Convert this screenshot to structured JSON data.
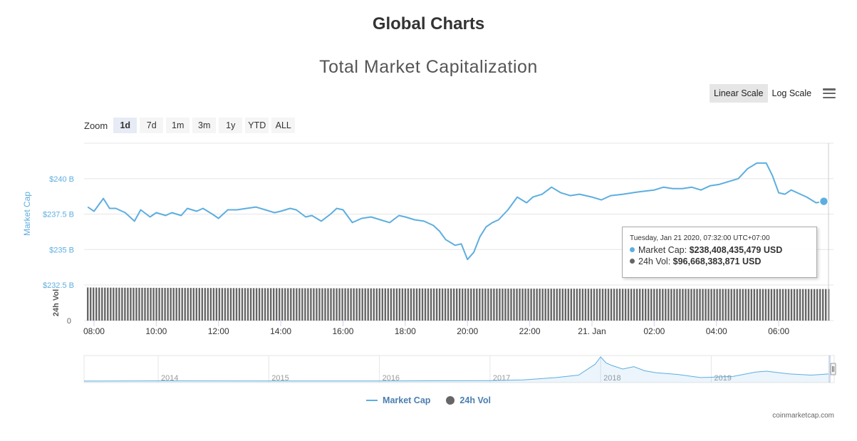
{
  "page": {
    "title": "Global Charts"
  },
  "chart_data": {
    "type": "line",
    "title": "Total Market Capitalization",
    "scale_buttons": [
      "Linear Scale",
      "Log Scale"
    ],
    "active_scale": "Linear Scale",
    "zoom": {
      "label": "Zoom",
      "buttons": [
        "1d",
        "7d",
        "1m",
        "3m",
        "1y",
        "YTD",
        "ALL"
      ],
      "active": "1d"
    },
    "y_axis": {
      "label": "Market Cap",
      "ticks": [
        "$240 B",
        "$237.5 B",
        "$235 B",
        "$232.5 B"
      ],
      "tick_values": [
        240,
        237.5,
        235,
        232.5
      ],
      "range": [
        232.5,
        242.5
      ]
    },
    "vol_axis": {
      "label": "24h Vol",
      "ticks": [
        "0"
      ]
    },
    "x_axis": {
      "ticks": [
        "08:00",
        "10:00",
        "12:00",
        "14:00",
        "16:00",
        "18:00",
        "20:00",
        "22:00",
        "21. Jan",
        "02:00",
        "04:00",
        "06:00"
      ],
      "tick_hours": [
        8,
        10,
        12,
        14,
        16,
        18,
        20,
        22,
        24,
        26,
        28,
        30
      ],
      "range": [
        7.68,
        31.6
      ]
    },
    "series": [
      {
        "name": "Market Cap",
        "color": "#5daee0",
        "x": [
          7.8,
          8.0,
          8.3,
          8.5,
          8.7,
          9.0,
          9.3,
          9.5,
          9.8,
          10.0,
          10.3,
          10.5,
          10.8,
          11.0,
          11.3,
          11.5,
          11.8,
          12.0,
          12.3,
          12.6,
          12.9,
          13.2,
          13.5,
          13.8,
          14.0,
          14.3,
          14.5,
          14.8,
          15.0,
          15.3,
          15.6,
          15.8,
          16.0,
          16.3,
          16.6,
          16.9,
          17.2,
          17.5,
          17.8,
          18.0,
          18.3,
          18.6,
          18.9,
          19.1,
          19.3,
          19.6,
          19.8,
          20.0,
          20.2,
          20.4,
          20.6,
          20.8,
          21.0,
          21.3,
          21.6,
          21.9,
          22.1,
          22.4,
          22.7,
          23.0,
          23.3,
          23.6,
          24.0,
          24.3,
          24.6,
          25.0,
          25.3,
          25.6,
          26.0,
          26.3,
          26.6,
          26.9,
          27.2,
          27.5,
          27.8,
          28.1,
          28.4,
          28.7,
          29.0,
          29.3,
          29.6,
          29.8,
          30.0,
          30.2,
          30.4,
          30.6,
          30.9,
          31.2,
          31.45
        ],
        "values": [
          238.0,
          237.7,
          238.6,
          237.9,
          237.9,
          237.6,
          237.0,
          237.8,
          237.3,
          237.6,
          237.4,
          237.6,
          237.4,
          237.9,
          237.7,
          237.9,
          237.5,
          237.2,
          237.8,
          237.8,
          237.9,
          238.0,
          237.8,
          237.6,
          237.7,
          237.9,
          237.8,
          237.3,
          237.4,
          237.0,
          237.5,
          237.9,
          237.8,
          236.9,
          237.2,
          237.3,
          237.1,
          236.9,
          237.4,
          237.3,
          237.1,
          237.0,
          236.7,
          236.3,
          235.7,
          235.3,
          235.4,
          234.3,
          234.8,
          235.9,
          236.6,
          236.9,
          237.1,
          237.8,
          238.7,
          238.3,
          238.7,
          238.9,
          239.4,
          239.0,
          238.8,
          238.9,
          238.7,
          238.5,
          238.8,
          238.9,
          239.0,
          239.1,
          239.2,
          239.4,
          239.3,
          239.3,
          239.4,
          239.2,
          239.5,
          239.6,
          239.8,
          240.0,
          240.7,
          241.1,
          241.1,
          240.2,
          239.0,
          238.9,
          239.2,
          239.0,
          238.7,
          238.3,
          238.4
        ]
      },
      {
        "name": "24h Vol",
        "color": "#666666",
        "note": "bars decrease slightly over the day",
        "start_billion": 101.5,
        "end_billion": 96.67,
        "range": [
          0,
          120
        ]
      }
    ],
    "tooltip": {
      "date": "Tuesday, Jan 21 2020, 07:32:00 UTC+07:00",
      "market_cap_label": "Market Cap: ",
      "market_cap_value": "$238,408,435,479 USD",
      "vol_label": "24h Vol: ",
      "vol_value": "$96,668,383,871 USD"
    },
    "navigator": {
      "ticks": [
        "2014",
        "2015",
        "2016",
        "2017",
        "2018",
        "2019"
      ],
      "tick_years": [
        2014,
        2015,
        2016,
        2017,
        2018,
        2019
      ],
      "range": [
        2013.33,
        2020.06
      ],
      "x": [
        2013.33,
        2014.0,
        2015.0,
        2016.0,
        2017.0,
        2017.3,
        2017.6,
        2017.8,
        2017.95,
        2018.0,
        2018.05,
        2018.1,
        2018.2,
        2018.3,
        2018.4,
        2018.5,
        2018.7,
        2018.9,
        2019.0,
        2019.2,
        2019.4,
        2019.5,
        2019.7,
        2019.9,
        2020.06
      ],
      "values": [
        2,
        10,
        5,
        7,
        18,
        40,
        120,
        200,
        560,
        800,
        600,
        520,
        400,
        480,
        340,
        280,
        220,
        120,
        130,
        160,
        300,
        330,
        240,
        200,
        238
      ]
    },
    "legend": [
      "Market Cap",
      "24h Vol"
    ]
  },
  "credits": "coinmarketcap.com"
}
